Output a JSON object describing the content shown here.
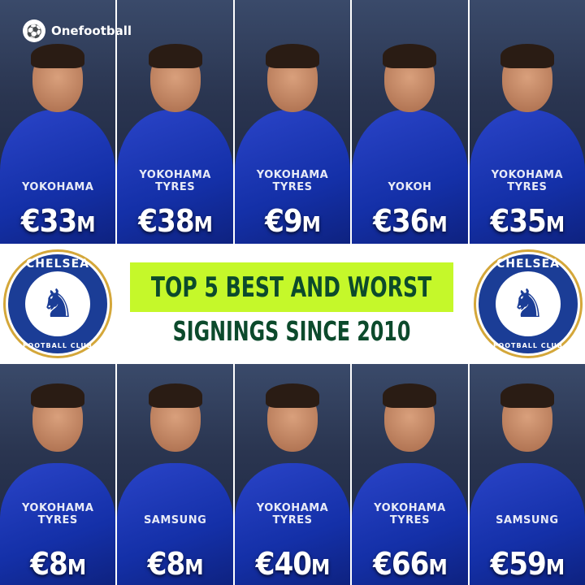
{
  "brand": {
    "name": "Onefootball",
    "icon": "player-kicking-icon"
  },
  "title": {
    "line1": "TOP 5 BEST AND WORST",
    "line2": "SIGNINGS SINCE 2010"
  },
  "crest": {
    "top": "CHELSEA",
    "bottom": "FOOTBALL CLUB"
  },
  "colors": {
    "banner": "#c5f82a",
    "title_text": "#0c4a2c",
    "kit": "#1430a8"
  },
  "best": [
    {
      "value": "€33",
      "unit": "M",
      "sponsor": "YOKOHAMA"
    },
    {
      "value": "€38",
      "unit": "M",
      "sponsor": "YOKOHAMA TYRES"
    },
    {
      "value": "€9",
      "unit": "M",
      "sponsor": "YOKOHAMA TYRES"
    },
    {
      "value": "€36",
      "unit": "M",
      "sponsor": "YOKOH"
    },
    {
      "value": "€35",
      "unit": "M",
      "sponsor": "YOKOHAMA TYRES"
    }
  ],
  "worst": [
    {
      "value": "€8",
      "unit": "M",
      "sponsor": "YOKOHAMA TYRES"
    },
    {
      "value": "€8",
      "unit": "M",
      "sponsor": "SAMSUNG"
    },
    {
      "value": "€40",
      "unit": "M",
      "sponsor": "YOKOHAMA TYRES"
    },
    {
      "value": "€66",
      "unit": "M",
      "sponsor": "YOKOHAMA TYRES"
    },
    {
      "value": "€59",
      "unit": "M",
      "sponsor": "SAMSUNG"
    }
  ]
}
